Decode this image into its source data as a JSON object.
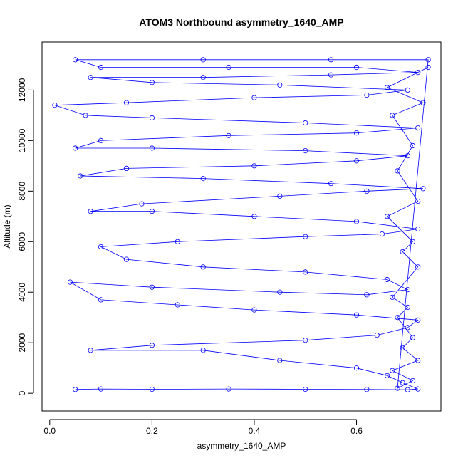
{
  "chart_data": {
    "type": "scatter",
    "title": "ATOM3 Northbound asymmetry_1640_AMP",
    "xlabel": "asymmetry_1640_AMP",
    "ylabel": "Altitude (m)",
    "xlim": [
      -0.015,
      0.765
    ],
    "ylim": [
      -700,
      13900
    ],
    "x_ticks": [
      0.0,
      0.2,
      0.4,
      0.6
    ],
    "x_tick_labels": [
      "0.0",
      "0.2",
      "0.4",
      "0.6"
    ],
    "y_ticks": [
      0,
      2000,
      4000,
      6000,
      8000,
      10000,
      12000
    ],
    "y_tick_labels": [
      "0",
      "2000",
      "4000",
      "6000",
      "8000",
      "10000",
      "12000"
    ],
    "grid": false,
    "series_color": "#0000ff",
    "marker": "open-circle",
    "connected": true,
    "series": [
      {
        "points": [
          [
            0.05,
            150
          ],
          [
            0.1,
            170
          ],
          [
            0.2,
            160
          ],
          [
            0.35,
            170
          ],
          [
            0.5,
            160
          ],
          [
            0.62,
            150
          ],
          [
            0.7,
            140
          ],
          [
            0.72,
            170
          ],
          [
            0.69,
            420
          ],
          [
            0.66,
            700
          ],
          [
            0.6,
            1000
          ],
          [
            0.45,
            1300
          ],
          [
            0.3,
            1700
          ],
          [
            0.08,
            1700
          ],
          [
            0.2,
            1900
          ],
          [
            0.5,
            2100
          ],
          [
            0.64,
            2300
          ],
          [
            0.7,
            2600
          ],
          [
            0.72,
            2900
          ],
          [
            0.6,
            3100
          ],
          [
            0.4,
            3300
          ],
          [
            0.25,
            3500
          ],
          [
            0.1,
            3700
          ],
          [
            0.04,
            4400
          ],
          [
            0.2,
            4200
          ],
          [
            0.45,
            4000
          ],
          [
            0.62,
            3900
          ],
          [
            0.7,
            4100
          ],
          [
            0.66,
            4500
          ],
          [
            0.5,
            4800
          ],
          [
            0.3,
            5000
          ],
          [
            0.15,
            5300
          ],
          [
            0.1,
            5800
          ],
          [
            0.25,
            6000
          ],
          [
            0.5,
            6200
          ],
          [
            0.65,
            6300
          ],
          [
            0.72,
            6500
          ],
          [
            0.6,
            6800
          ],
          [
            0.4,
            7000
          ],
          [
            0.2,
            7200
          ],
          [
            0.08,
            7200
          ],
          [
            0.18,
            7500
          ],
          [
            0.45,
            7800
          ],
          [
            0.62,
            8000
          ],
          [
            0.73,
            8100
          ],
          [
            0.55,
            8300
          ],
          [
            0.3,
            8500
          ],
          [
            0.06,
            8600
          ],
          [
            0.15,
            8900
          ],
          [
            0.4,
            9000
          ],
          [
            0.6,
            9200
          ],
          [
            0.7,
            9400
          ],
          [
            0.5,
            9600
          ],
          [
            0.2,
            9700
          ],
          [
            0.05,
            9700
          ],
          [
            0.1,
            10000
          ],
          [
            0.35,
            10200
          ],
          [
            0.6,
            10300
          ],
          [
            0.72,
            10500
          ],
          [
            0.5,
            10700
          ],
          [
            0.2,
            10900
          ],
          [
            0.07,
            11000
          ],
          [
            0.01,
            11400
          ],
          [
            0.15,
            11500
          ],
          [
            0.4,
            11700
          ],
          [
            0.62,
            11800
          ],
          [
            0.7,
            12000
          ],
          [
            0.45,
            12200
          ],
          [
            0.2,
            12300
          ],
          [
            0.08,
            12500
          ],
          [
            0.3,
            12500
          ],
          [
            0.55,
            12600
          ],
          [
            0.72,
            12700
          ],
          [
            0.6,
            12900
          ],
          [
            0.35,
            12900
          ],
          [
            0.1,
            12900
          ],
          [
            0.05,
            13200
          ],
          [
            0.3,
            13200
          ],
          [
            0.55,
            13200
          ],
          [
            0.74,
            13200
          ],
          [
            0.68,
            200
          ],
          [
            0.71,
            500
          ],
          [
            0.67,
            900
          ],
          [
            0.72,
            1300
          ],
          [
            0.69,
            1800
          ],
          [
            0.71,
            2200
          ],
          [
            0.68,
            3000
          ],
          [
            0.7,
            3400
          ],
          [
            0.67,
            3800
          ],
          [
            0.72,
            5000
          ],
          [
            0.69,
            5600
          ],
          [
            0.71,
            6000
          ],
          [
            0.66,
            7000
          ],
          [
            0.72,
            7600
          ],
          [
            0.68,
            8800
          ],
          [
            0.71,
            9800
          ],
          [
            0.67,
            11000
          ],
          [
            0.73,
            11500
          ],
          [
            0.66,
            12100
          ],
          [
            0.74,
            12900
          ]
        ]
      }
    ]
  }
}
